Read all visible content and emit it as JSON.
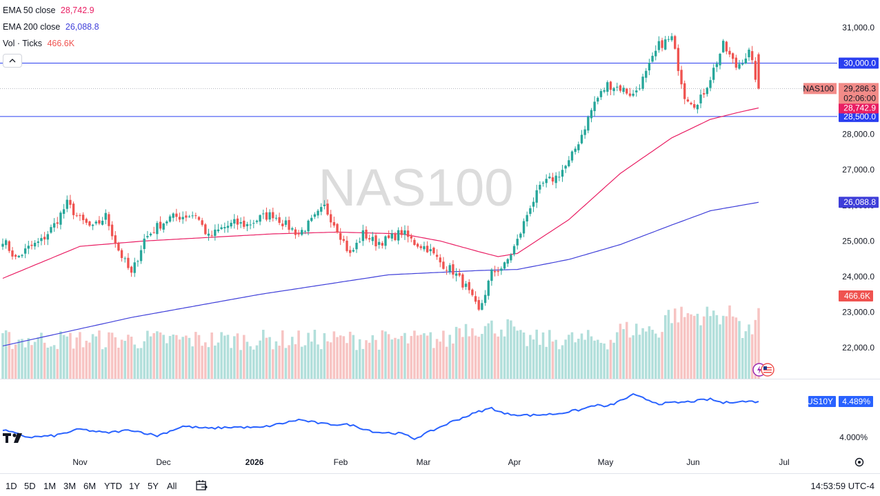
{
  "legend": {
    "ema50_label": "EMA 50 close",
    "ema50_value": "28,742.9",
    "ema200_label": "EMA 200 close",
    "ema200_value": "26,088.8",
    "vol_label": "Vol · Ticks",
    "vol_value": "466.6K"
  },
  "timeframes": [
    "1D",
    "5D",
    "1M",
    "3M",
    "6M",
    "YTD",
    "1Y",
    "5Y",
    "All"
  ],
  "clock": "14:53:59 UTC-4",
  "watermark": "NAS100",
  "colors": {
    "up": "#26a69a",
    "down": "#ef5350",
    "up_vol": "#b2dfdb",
    "down_vol": "#f7c4c3",
    "ema50": "#e91e63",
    "ema200": "#3f3fd9",
    "hline": "#2a3ff0",
    "us10y": "#2962ff",
    "last_label_bg": "#f28b88"
  },
  "chart_data": [
    {
      "type": "candlestick",
      "symbol": "NAS100",
      "y_axis_ticks": [
        31000,
        30000,
        29000,
        28000,
        27000,
        26000,
        25000,
        24000,
        23000,
        22000
      ],
      "y_axis_tick_labels": [
        "31,000.0",
        "30,000.0",
        "29,000.0",
        "28,000.0",
        "27,000.0",
        "26,000.0",
        "25,000.0",
        "24,000.0",
        "23,000.0",
        "22,000.0"
      ],
      "ylim": [
        21200,
        31700
      ],
      "x_axis_labels": [
        "Nov",
        "Dec",
        "2026",
        "Feb",
        "Mar",
        "Apr",
        "May",
        "Jun",
        "Jul"
      ],
      "last_price": {
        "symbol": "NAS100",
        "value": 29286.3,
        "label": "29,286.3",
        "countdown": "02:06:00"
      },
      "horizontal_lines": [
        {
          "value": 30000,
          "label": "30,000.0"
        },
        {
          "value": 28500,
          "label": "28,500.0"
        }
      ],
      "ema50_last": {
        "value": 28742.9,
        "label": "28,742.9"
      },
      "ema200_last": {
        "value": 26088.8,
        "label": "26,088.8"
      },
      "volume_last_label": "466.6K",
      "close_anchors": [
        [
          0,
          25050
        ],
        [
          4,
          24500
        ],
        [
          8,
          24800
        ],
        [
          12,
          25000
        ],
        [
          16,
          25450
        ],
        [
          20,
          26050
        ],
        [
          24,
          25600
        ],
        [
          28,
          25350
        ],
        [
          32,
          25700
        ],
        [
          36,
          24750
        ],
        [
          40,
          24050
        ],
        [
          44,
          25050
        ],
        [
          48,
          25400
        ],
        [
          52,
          25650
        ],
        [
          56,
          25700
        ],
        [
          60,
          25750
        ],
        [
          64,
          25100
        ],
        [
          68,
          25350
        ],
        [
          72,
          25500
        ],
        [
          76,
          25450
        ],
        [
          80,
          25650
        ],
        [
          84,
          25750
        ],
        [
          88,
          25450
        ],
        [
          92,
          25200
        ],
        [
          96,
          25550
        ],
        [
          100,
          25950
        ],
        [
          104,
          25350
        ],
        [
          108,
          24600
        ],
        [
          112,
          25200
        ],
        [
          116,
          24950
        ],
        [
          120,
          25050
        ],
        [
          124,
          25250
        ],
        [
          128,
          24950
        ],
        [
          132,
          24800
        ],
        [
          136,
          24400
        ],
        [
          140,
          24150
        ],
        [
          144,
          23700
        ],
        [
          148,
          23000
        ],
        [
          152,
          24100
        ],
        [
          156,
          24300
        ],
        [
          160,
          25000
        ],
        [
          164,
          26000
        ],
        [
          168,
          26600
        ],
        [
          172,
          26800
        ],
        [
          176,
          27200
        ],
        [
          180,
          28000
        ],
        [
          184,
          28900
        ],
        [
          188,
          29400
        ],
        [
          192,
          29300
        ],
        [
          196,
          29100
        ],
        [
          200,
          29700
        ],
        [
          204,
          30500
        ],
        [
          208,
          30700
        ],
        [
          212,
          29100
        ],
        [
          216,
          28800
        ],
        [
          220,
          29600
        ],
        [
          224,
          30500
        ],
        [
          228,
          29900
        ],
        [
          232,
          30300
        ],
        [
          235,
          29286
        ]
      ],
      "ema50_path": [
        [
          0,
          23950
        ],
        [
          24,
          24850
        ],
        [
          44,
          25000
        ],
        [
          64,
          25100
        ],
        [
          84,
          25200
        ],
        [
          104,
          25250
        ],
        [
          124,
          25200
        ],
        [
          136,
          25000
        ],
        [
          148,
          24700
        ],
        [
          154,
          24560
        ],
        [
          160,
          24650
        ],
        [
          176,
          25600
        ],
        [
          192,
          26900
        ],
        [
          208,
          27900
        ],
        [
          220,
          28420
        ],
        [
          228,
          28600
        ],
        [
          235,
          28742
        ]
      ],
      "ema200_path": [
        [
          0,
          22050
        ],
        [
          40,
          22850
        ],
        [
          80,
          23500
        ],
        [
          120,
          24050
        ],
        [
          148,
          24170
        ],
        [
          160,
          24200
        ],
        [
          176,
          24480
        ],
        [
          192,
          24900
        ],
        [
          208,
          25450
        ],
        [
          220,
          25850
        ],
        [
          235,
          26088
        ]
      ]
    },
    {
      "type": "line",
      "name": "US10Y",
      "last_value_label": "4.489%",
      "y_tick_label": "4.000%",
      "tick_value": 4.0,
      "ylim": [
        3.8,
        4.65
      ],
      "points": [
        [
          0,
          4.1
        ],
        [
          8,
          4.0
        ],
        [
          16,
          4.02
        ],
        [
          24,
          4.11
        ],
        [
          32,
          4.06
        ],
        [
          40,
          4.1
        ],
        [
          48,
          4.02
        ],
        [
          56,
          4.15
        ],
        [
          64,
          4.12
        ],
        [
          72,
          4.14
        ],
        [
          80,
          4.13
        ],
        [
          88,
          4.2
        ],
        [
          92,
          4.24
        ],
        [
          100,
          4.18
        ],
        [
          108,
          4.17
        ],
        [
          116,
          4.07
        ],
        [
          124,
          4.05
        ],
        [
          128,
          3.98
        ],
        [
          132,
          4.06
        ],
        [
          140,
          4.22
        ],
        [
          148,
          4.35
        ],
        [
          152,
          4.4
        ],
        [
          156,
          4.32
        ],
        [
          164,
          4.3
        ],
        [
          172,
          4.32
        ],
        [
          180,
          4.38
        ],
        [
          184,
          4.44
        ],
        [
          188,
          4.42
        ],
        [
          196,
          4.58
        ],
        [
          204,
          4.46
        ],
        [
          212,
          4.48
        ],
        [
          220,
          4.52
        ],
        [
          224,
          4.47
        ],
        [
          228,
          4.49
        ],
        [
          235,
          4.489
        ]
      ]
    }
  ]
}
